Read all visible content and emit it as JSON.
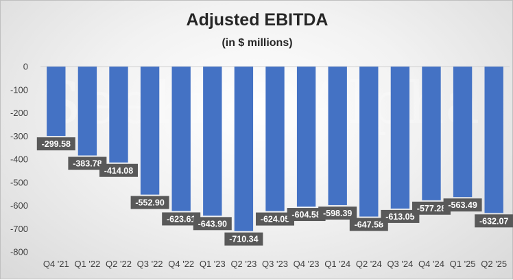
{
  "chart_data": {
    "type": "bar",
    "title": "Adjusted EBITDA",
    "subtitle": "(in $ millions)",
    "categories": [
      "Q4 '21",
      "Q1 '22",
      "Q2 '22",
      "Q3 '22",
      "Q4 '22",
      "Q1 '23",
      "Q2 '23",
      "Q3 '23",
      "Q4 '23",
      "Q1 '24",
      "Q2 '24",
      "Q3 '24",
      "Q4 '24",
      "Q1 '25",
      "Q2 '25"
    ],
    "values": [
      -299.58,
      -383.78,
      -414.08,
      -552.9,
      -623.61,
      -643.9,
      -710.34,
      -624.05,
      -604.58,
      -598.39,
      -647.58,
      -613.05,
      -577.28,
      -563.49,
      -632.07
    ],
    "labels": [
      "-299.58",
      "-383.78",
      "-414.08",
      "-552.90",
      "-623.61",
      "-643.90",
      "-710.34",
      "-624.05",
      "-604.58",
      "-598.39",
      "-647.58",
      "-613.05",
      "-577.28",
      "-563.49",
      "-632.07"
    ],
    "yticks": [
      "0",
      "-100",
      "-200",
      "-300",
      "-400",
      "-500",
      "-600",
      "-700",
      "-800"
    ],
    "ylim": [
      -800,
      0
    ],
    "xlabel": "",
    "ylabel": "",
    "grid": false,
    "legend": "none",
    "bar_color": "#4472c4",
    "label_bg_color": "#595959"
  },
  "watermark": "Seeking Alpha"
}
